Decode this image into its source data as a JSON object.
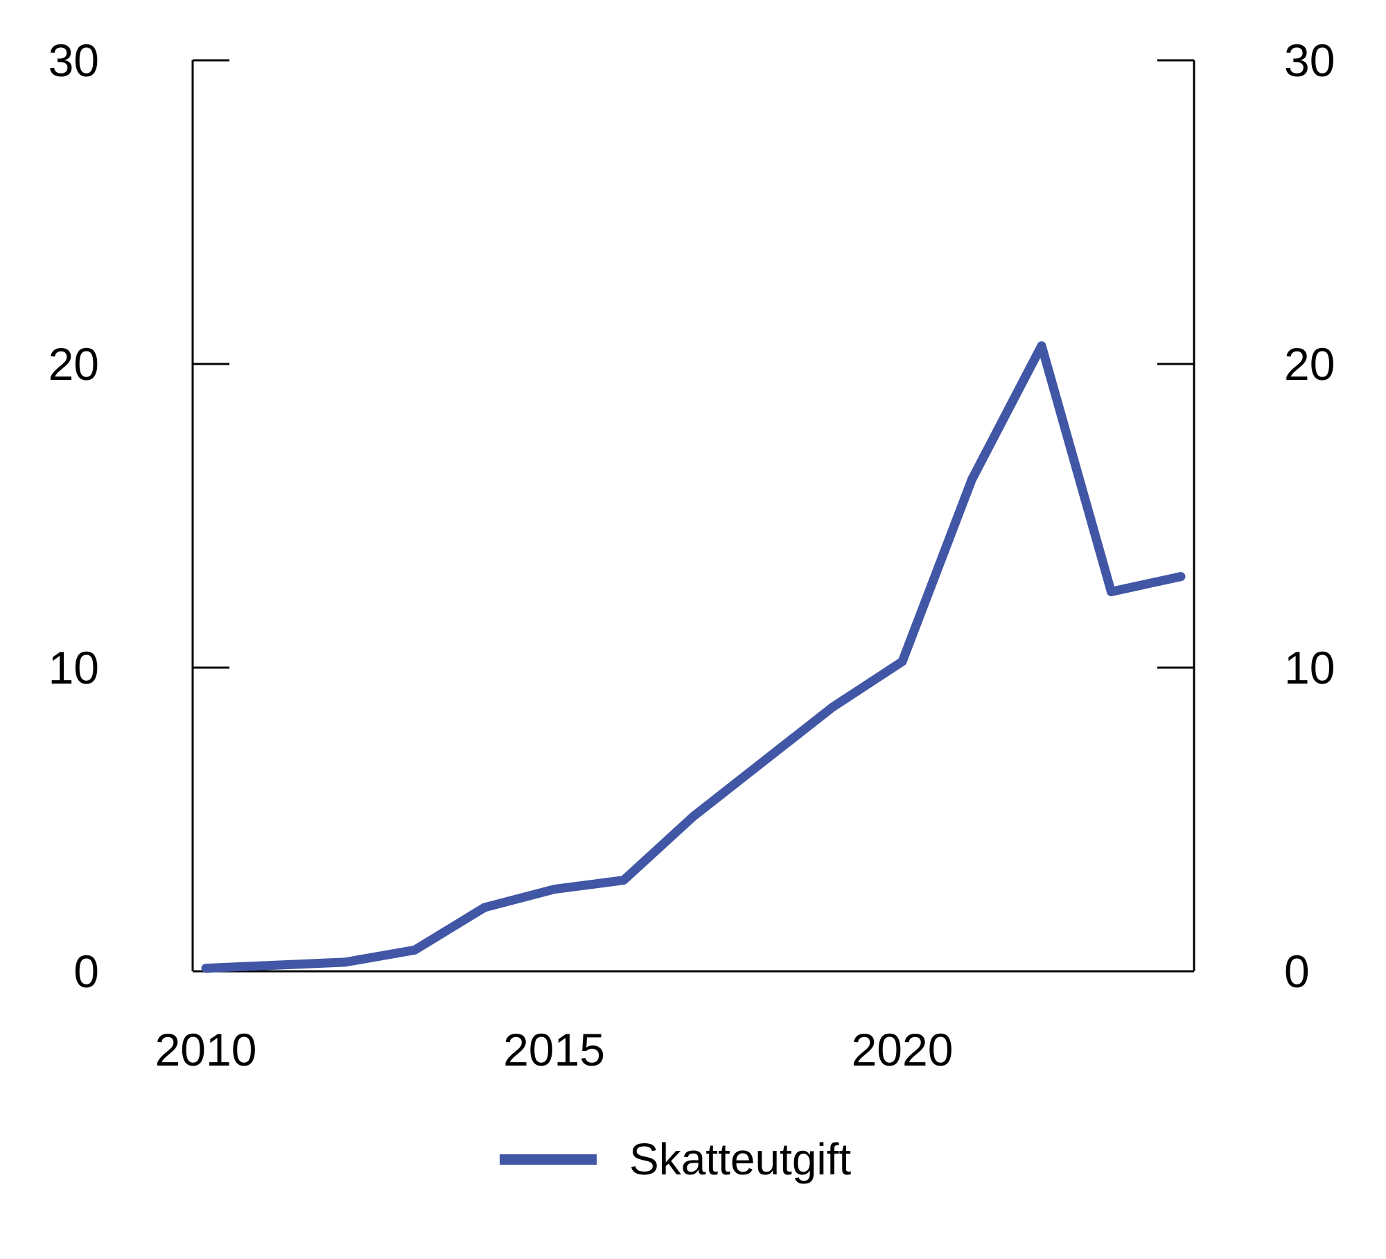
{
  "figure": {
    "background": "#ffffff",
    "axis_color": "#000000",
    "text_color": "#000000"
  },
  "legend": {
    "label": "Skatteutgift"
  },
  "chart_data": {
    "type": "line",
    "title": "",
    "xlabel": "",
    "ylabel": "",
    "x": [
      2010,
      2011,
      2012,
      2013,
      2014,
      2015,
      2016,
      2017,
      2018,
      2019,
      2020,
      2021,
      2022,
      2023,
      2024
    ],
    "series": [
      {
        "name": "Skatteutgift",
        "color": "#4156a5",
        "values": [
          0.1,
          0.2,
          0.3,
          0.7,
          2.1,
          2.7,
          3.0,
          5.1,
          6.9,
          8.7,
          10.2,
          16.2,
          20.6,
          12.5,
          13.0
        ]
      }
    ],
    "ylim": [
      0,
      30
    ],
    "y_ticks": [
      0,
      10,
      20,
      30
    ],
    "y_tick_labels": [
      "0",
      "10",
      "20",
      "30"
    ],
    "y_axis_sides": [
      "left",
      "right"
    ],
    "x_ticks": [
      {
        "label": "2010",
        "year": 2010
      },
      {
        "label": "2015",
        "year": 2015
      },
      {
        "label": "2020",
        "year": 2020
      }
    ],
    "grid": false,
    "legend_position": "bottom"
  }
}
